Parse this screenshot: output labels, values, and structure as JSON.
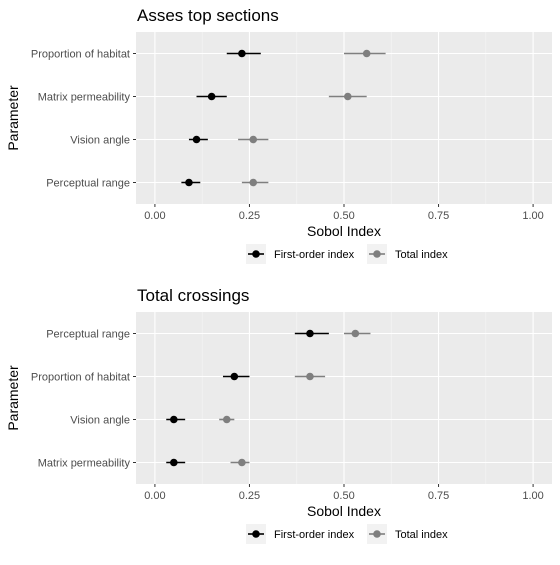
{
  "chart_data": [
    {
      "type": "scatter",
      "title": "Asses top sections",
      "xlabel": "Sobol Index",
      "ylabel": "Parameter",
      "xlim": [
        -0.05,
        1.05
      ],
      "x_ticks": [
        {
          "value": 0.0,
          "label": "0.00"
        },
        {
          "value": 0.25,
          "label": "0.25"
        },
        {
          "value": 0.5,
          "label": "0.50"
        },
        {
          "value": 0.75,
          "label": "0.75"
        },
        {
          "value": 1.0,
          "label": "1.00"
        }
      ],
      "categories": [
        "Proportion of habitat",
        "Matrix permeability",
        "Vision angle",
        "Perceptual range"
      ],
      "grid": true,
      "legend_position": "bottom",
      "series": [
        {
          "name": "First-order index",
          "color": "#000000",
          "values": [
            0.23,
            0.15,
            0.11,
            0.09
          ],
          "lower": [
            0.19,
            0.11,
            0.09,
            0.07
          ],
          "upper": [
            0.28,
            0.19,
            0.14,
            0.12
          ]
        },
        {
          "name": "Total index",
          "color": "#7f7f7f",
          "values": [
            0.56,
            0.51,
            0.26,
            0.26
          ],
          "lower": [
            0.5,
            0.46,
            0.22,
            0.23
          ],
          "upper": [
            0.61,
            0.56,
            0.3,
            0.3
          ]
        }
      ]
    },
    {
      "type": "scatter",
      "title": "Total crossings",
      "xlabel": "Sobol Index",
      "ylabel": "Parameter",
      "xlim": [
        -0.05,
        1.05
      ],
      "x_ticks": [
        {
          "value": 0.0,
          "label": "0.00"
        },
        {
          "value": 0.25,
          "label": "0.25"
        },
        {
          "value": 0.5,
          "label": "0.50"
        },
        {
          "value": 0.75,
          "label": "0.75"
        },
        {
          "value": 1.0,
          "label": "1.00"
        }
      ],
      "categories": [
        "Perceptual range",
        "Proportion of habitat",
        "Vision angle",
        "Matrix permeability"
      ],
      "grid": true,
      "legend_position": "bottom",
      "series": [
        {
          "name": "First-order index",
          "color": "#000000",
          "values": [
            0.41,
            0.21,
            0.05,
            0.05
          ],
          "lower": [
            0.37,
            0.18,
            0.03,
            0.03
          ],
          "upper": [
            0.46,
            0.25,
            0.08,
            0.08
          ]
        },
        {
          "name": "Total index",
          "color": "#7f7f7f",
          "values": [
            0.53,
            0.41,
            0.19,
            0.23
          ],
          "lower": [
            0.5,
            0.37,
            0.17,
            0.2
          ],
          "upper": [
            0.57,
            0.45,
            0.21,
            0.25
          ]
        }
      ]
    }
  ]
}
